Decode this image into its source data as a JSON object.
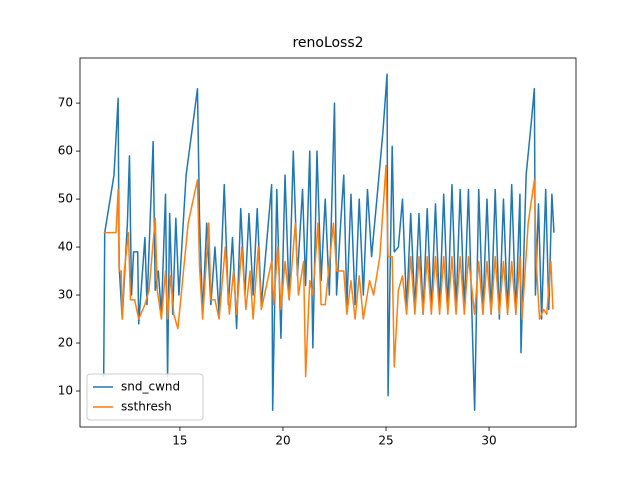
{
  "chart_data": {
    "type": "line",
    "title": "renoLoss2",
    "xlim": [
      10.15,
      34.22
    ],
    "ylim": [
      2.5,
      79.4
    ],
    "xticks": [
      15,
      20,
      25,
      30
    ],
    "yticks": [
      10,
      20,
      30,
      40,
      50,
      60,
      70
    ],
    "legend": "lower left",
    "series": [
      {
        "name": "snd_cwnd",
        "color": "#1f77b4",
        "x": [
          11.3,
          11.35,
          11.8,
          12.0,
          12.05,
          12.2,
          12.45,
          12.55,
          12.65,
          12.75,
          12.95,
          13.0,
          13.3,
          13.4,
          13.7,
          13.8,
          13.95,
          14.1,
          14.3,
          14.4,
          14.5,
          14.65,
          14.8,
          14.95,
          15.3,
          15.7,
          15.85,
          15.95,
          16.1,
          16.3,
          16.5,
          16.7,
          16.9,
          17.15,
          17.35,
          17.55,
          17.75,
          17.95,
          18.15,
          18.35,
          18.55,
          18.75,
          18.95,
          19.45,
          19.5,
          19.7,
          19.9,
          20.1,
          20.3,
          20.5,
          20.7,
          20.95,
          21.1,
          21.3,
          21.45,
          21.65,
          21.85,
          22.05,
          22.25,
          22.5,
          22.6,
          22.8,
          22.95,
          23.1,
          23.3,
          23.5,
          23.7,
          23.9,
          24.1,
          24.3,
          24.6,
          24.85,
          25.05,
          25.1,
          25.3,
          25.4,
          25.6,
          25.8,
          26.0,
          26.2,
          26.4,
          26.6,
          26.8,
          27.0,
          27.2,
          27.4,
          27.6,
          27.8,
          28.0,
          28.2,
          28.4,
          28.6,
          28.8,
          29.0,
          29.3,
          29.5,
          29.7,
          29.9,
          30.1,
          30.3,
          30.5,
          30.7,
          30.9,
          31.1,
          31.3,
          31.5,
          31.55,
          31.8,
          32.05,
          32.2,
          32.25,
          32.4,
          32.55,
          32.75,
          32.9,
          33.05,
          33.15
        ],
        "values": [
          13,
          43,
          55,
          71,
          36,
          25,
          45,
          59,
          30,
          39,
          39,
          24,
          42,
          28,
          62,
          31,
          35,
          26,
          51,
          13,
          47,
          26,
          46,
          30,
          55,
          68,
          73,
          46,
          26,
          45,
          28,
          40,
          26,
          53,
          28,
          42,
          23,
          48,
          30,
          47,
          30,
          48,
          28,
          53,
          6,
          52,
          21,
          55,
          29,
          60,
          34,
          52,
          32,
          60,
          19,
          60,
          33,
          50,
          30,
          70,
          30,
          45,
          55,
          28,
          51,
          28,
          50,
          30,
          52,
          38,
          52,
          64,
          76,
          9,
          61,
          39,
          40,
          50,
          27,
          47,
          27,
          47,
          26,
          48,
          27,
          49,
          27,
          51,
          27,
          53,
          27,
          52,
          27,
          52,
          6,
          52,
          26,
          50,
          26,
          52,
          25,
          50,
          26,
          53,
          26,
          51,
          18,
          55,
          66,
          73,
          30,
          49,
          25,
          52,
          27,
          51,
          43
        ]
      },
      {
        "name": "ssthresh",
        "color": "#ff7f0e",
        "x": [
          11.3,
          11.9,
          12.0,
          12.05,
          12.15,
          12.2,
          12.3,
          12.5,
          12.6,
          12.8,
          13.0,
          13.3,
          13.5,
          13.8,
          13.9,
          14.1,
          14.3,
          14.4,
          14.55,
          14.7,
          14.9,
          15.4,
          15.85,
          15.95,
          16.1,
          16.4,
          16.5,
          16.7,
          16.9,
          17.2,
          17.4,
          17.6,
          17.75,
          18.0,
          18.2,
          18.4,
          18.55,
          18.8,
          18.95,
          19.45,
          19.55,
          19.75,
          19.9,
          20.1,
          20.3,
          20.6,
          20.75,
          21.0,
          21.1,
          21.3,
          21.45,
          21.7,
          21.85,
          22.05,
          22.45,
          22.6,
          22.8,
          22.95,
          23.1,
          23.3,
          23.5,
          23.7,
          23.9,
          24.2,
          24.4,
          24.7,
          25.0,
          25.1,
          25.3,
          25.4,
          25.6,
          25.8,
          26.0,
          26.2,
          26.4,
          26.6,
          26.8,
          27.0,
          27.2,
          27.4,
          27.6,
          27.8,
          28.0,
          28.2,
          28.4,
          28.6,
          28.8,
          29.0,
          29.3,
          29.5,
          29.7,
          29.9,
          30.1,
          30.3,
          30.5,
          30.7,
          30.9,
          31.1,
          31.3,
          31.5,
          31.6,
          31.9,
          32.2,
          32.3,
          32.45,
          32.65,
          32.8,
          33.0,
          33.1
        ],
        "values": [
          43,
          43,
          52,
          35,
          35,
          25,
          35,
          43,
          29,
          29,
          25,
          28,
          31,
          46,
          31,
          25,
          35,
          25,
          34,
          26,
          23,
          45,
          54,
          36,
          25,
          45,
          29,
          29,
          25,
          40,
          26,
          35,
          26,
          40,
          27,
          35,
          25,
          40,
          27,
          37,
          28,
          40,
          27,
          37,
          29,
          45,
          30,
          37,
          13,
          33,
          30,
          45,
          28,
          28,
          45,
          35,
          35,
          35,
          26,
          33,
          25,
          34,
          25,
          33,
          30,
          38,
          57,
          38,
          38,
          15,
          31,
          34,
          26,
          38,
          26,
          38,
          26,
          38,
          26,
          38,
          26,
          38,
          26,
          38,
          26,
          38,
          26,
          38,
          26,
          37,
          26,
          37,
          26,
          38,
          26,
          37,
          26,
          37,
          26,
          38,
          25,
          45,
          54,
          36,
          25,
          27,
          26,
          37,
          27
        ]
      }
    ]
  }
}
